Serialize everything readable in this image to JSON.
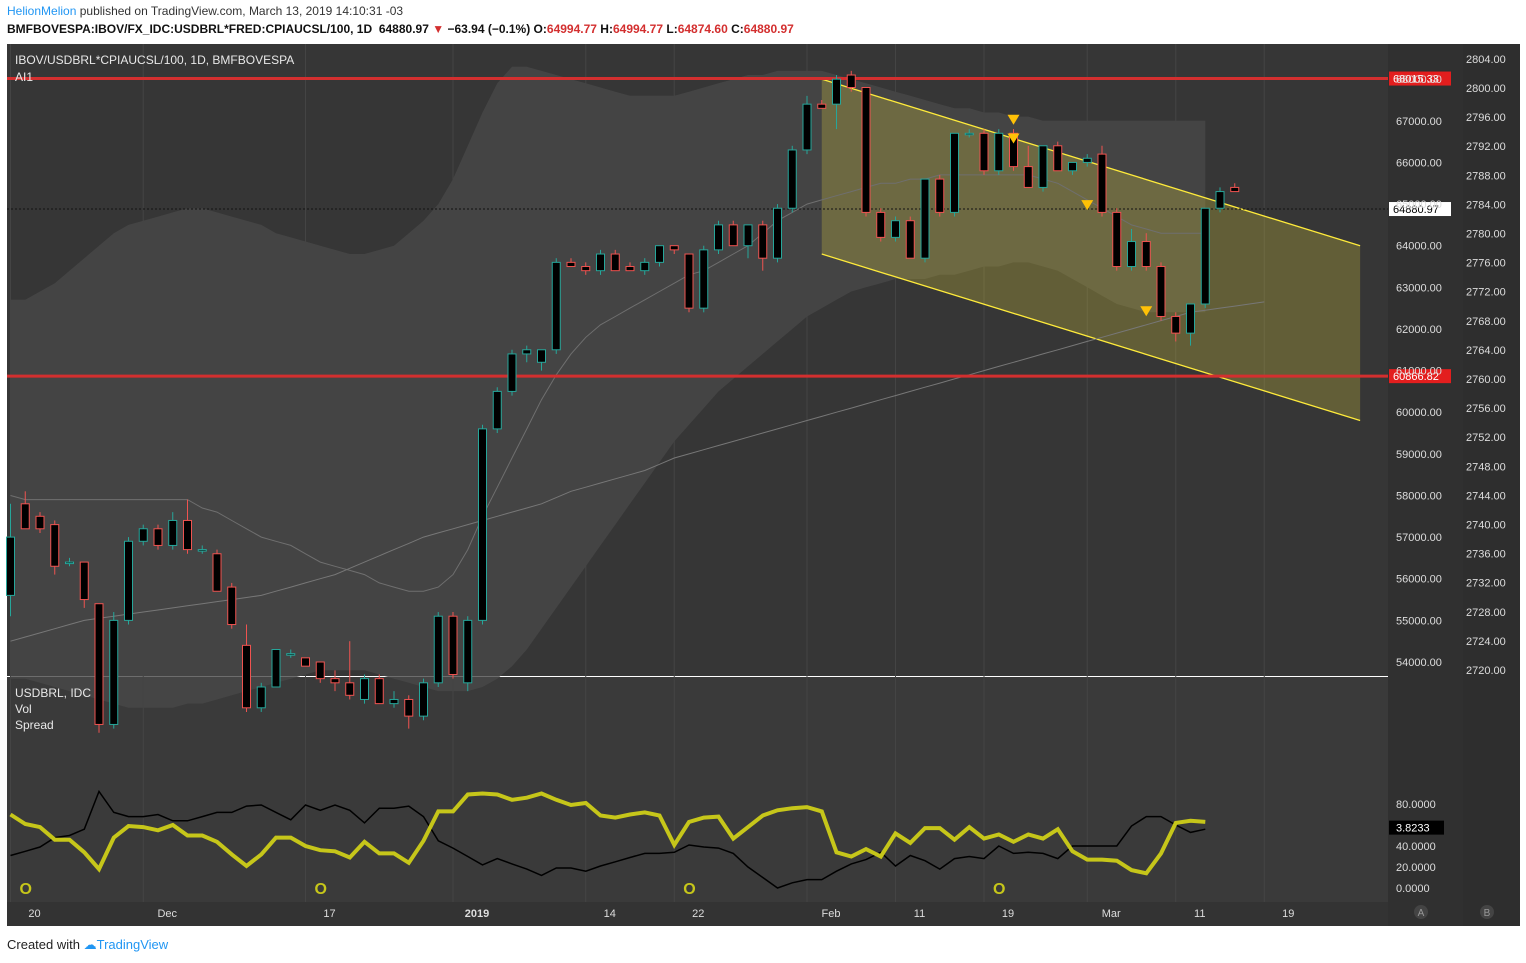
{
  "header": {
    "user": "HelionMelion",
    "published": "published on TradingView.com, March 13, 2019 14:10:31 -03"
  },
  "ohlc_line": {
    "symbol": "BMFBOVESPA:IBOV/FX_IDC:USDBRL*FRED:CPIAUCSL/100, 1D",
    "last": "64880.97",
    "change": "−63.94 (−0.1%)",
    "o_label": "O:",
    "o": "64994.77",
    "h_label": "H:",
    "h": "64994.77",
    "l_label": "L:",
    "l": "64874.60",
    "c_label": "C:",
    "c": "64880.97"
  },
  "footer": {
    "created": "Created with",
    "brand": "TradingView"
  },
  "colors": {
    "bull": "#26a69a",
    "bear": "#ef5350",
    "channel": "#ffeb3b",
    "hline": "#d32f2f",
    "spread": "#c6c61a",
    "pane_bg": "#3a3a3a"
  },
  "chart_data": [
    {
      "type": "candlestick",
      "legend": [
        "IBOV/USDBRL*CPIAUCSL/100, 1D, BMFBOVESPA",
        "AI1"
      ],
      "y_axis_right": {
        "ticks": [
          "54000.00",
          "55000.00",
          "56000.00",
          "57000.00",
          "58000.00",
          "59000.00",
          "60000.00",
          "61000.00",
          "62000.00",
          "63000.00",
          "64000.00",
          "65000.00",
          "66000.00",
          "67000.00",
          "68000.00"
        ],
        "range": [
          53800,
          68380
        ]
      },
      "y_axis_secondary": {
        "ticks": [
          "2720.00",
          "2724.00",
          "2728.00",
          "2732.00",
          "2736.00",
          "2740.00",
          "2744.00",
          "2748.00",
          "2752.00",
          "2756.00",
          "2760.00",
          "2764.00",
          "2768.00",
          "2772.00",
          "2776.00",
          "2780.00",
          "2784.00",
          "2788.00",
          "2792.00",
          "2796.00",
          "2800.00",
          "2804.00"
        ]
      },
      "x_axis": {
        "labels": [
          {
            "text": "20",
            "index": 0
          },
          {
            "text": "Dec",
            "index": 9
          },
          {
            "text": "17",
            "index": 20
          },
          {
            "text": "2019",
            "index": 30
          },
          {
            "text": "14",
            "index": 39
          },
          {
            "text": "22",
            "index": 45
          },
          {
            "text": "Feb",
            "index": 54
          },
          {
            "text": "11",
            "index": 60
          },
          {
            "text": "19",
            "index": 66
          },
          {
            "text": "Mar",
            "index": 73
          },
          {
            "text": "11",
            "index": 79
          },
          {
            "text": "19",
            "index": 85
          }
        ],
        "pane_labels": [
          "A",
          "B"
        ]
      },
      "horizontal_lines": [
        {
          "value": 68015.33,
          "label": "68015.33"
        },
        {
          "value": 60866.82,
          "label": "60866.82"
        }
      ],
      "last_price": {
        "value": 64880.97,
        "label": "64880.97"
      },
      "channel": {
        "upper_start": {
          "index": 55,
          "value": 68000
        },
        "upper_end": {
          "index": 91.5,
          "value": 64000
        },
        "lower_start": {
          "index": 55,
          "value": 63800
        },
        "lower_end": {
          "index": 91.5,
          "value": 59800
        }
      },
      "markers": [
        {
          "index": 68,
          "value": 67000,
          "direction": "down"
        },
        {
          "index": 68,
          "value": 66550,
          "direction": "down"
        },
        {
          "index": 73,
          "value": 64950,
          "direction": "down"
        },
        {
          "index": 77,
          "value": 62400,
          "direction": "up"
        }
      ],
      "ohlc": [
        [
          55600,
          57800,
          55100,
          57000
        ],
        [
          57800,
          58100,
          57200,
          57200
        ],
        [
          57500,
          57600,
          57100,
          57200
        ],
        [
          57300,
          57400,
          56100,
          56300
        ],
        [
          56400,
          56500,
          56300,
          56400
        ],
        [
          56400,
          56400,
          55300,
          55500
        ],
        [
          55400,
          55400,
          52300,
          52500
        ],
        [
          52500,
          55200,
          52400,
          55000
        ],
        [
          55000,
          57000,
          54900,
          56900
        ],
        [
          56900,
          57300,
          56800,
          57200
        ],
        [
          57200,
          57300,
          56700,
          56800
        ],
        [
          56800,
          57600,
          56700,
          57400
        ],
        [
          57400,
          57900,
          56600,
          56700
        ],
        [
          56700,
          56800,
          56600,
          56700
        ],
        [
          56600,
          56700,
          55700,
          55700
        ],
        [
          55800,
          55900,
          54800,
          54900
        ],
        [
          54400,
          54900,
          52800,
          52900
        ],
        [
          52900,
          53500,
          52800,
          53400
        ],
        [
          53400,
          54300,
          53400,
          54300
        ],
        [
          54200,
          54300,
          54100,
          54200
        ],
        [
          54100,
          54100,
          53900,
          53900
        ],
        [
          54000,
          54000,
          53500,
          53600
        ],
        [
          53600,
          53800,
          53300,
          53500
        ],
        [
          53500,
          54500,
          53100,
          53200
        ],
        [
          53100,
          53700,
          53000,
          53600
        ],
        [
          53600,
          53700,
          53000,
          53000
        ],
        [
          53000,
          53300,
          52900,
          53100
        ],
        [
          53100,
          53200,
          52400,
          52700
        ],
        [
          52700,
          53600,
          52600,
          53500
        ],
        [
          53500,
          55200,
          53400,
          55100
        ],
        [
          55100,
          55200,
          53600,
          53700
        ],
        [
          53500,
          55100,
          53300,
          55000
        ],
        [
          55000,
          59700,
          54900,
          59600
        ],
        [
          59600,
          60600,
          59500,
          60500
        ],
        [
          60500,
          61500,
          60400,
          61400
        ],
        [
          61400,
          61600,
          61200,
          61500
        ],
        [
          61200,
          61500,
          61000,
          61500
        ],
        [
          61500,
          63700,
          61400,
          63600
        ],
        [
          63600,
          63700,
          63500,
          63500
        ],
        [
          63500,
          63600,
          63300,
          63400
        ],
        [
          63400,
          63900,
          63300,
          63800
        ],
        [
          63800,
          63900,
          63400,
          63400
        ],
        [
          63500,
          63600,
          63400,
          63400
        ],
        [
          63400,
          63700,
          63300,
          63600
        ],
        [
          63600,
          64000,
          63500,
          64000
        ],
        [
          64000,
          64000,
          63800,
          63900
        ],
        [
          63800,
          63800,
          62400,
          62500
        ],
        [
          62500,
          64000,
          62400,
          63900
        ],
        [
          63900,
          64600,
          63800,
          64500
        ],
        [
          64500,
          64600,
          64000,
          64000
        ],
        [
          64000,
          64500,
          63700,
          64500
        ],
        [
          64500,
          64600,
          63400,
          63700
        ],
        [
          63700,
          65000,
          63600,
          64900
        ],
        [
          64900,
          66400,
          64800,
          66300
        ],
        [
          66300,
          67600,
          66200,
          67400
        ],
        [
          67400,
          67500,
          67300,
          67300
        ],
        [
          67400,
          68100,
          66800,
          68000
        ],
        [
          68100,
          68200,
          67700,
          67800
        ],
        [
          67800,
          67800,
          64700,
          64800
        ],
        [
          64800,
          64900,
          64100,
          64200
        ],
        [
          64200,
          64700,
          64100,
          64600
        ],
        [
          64600,
          64700,
          63700,
          63700
        ],
        [
          63700,
          65600,
          63600,
          65600
        ],
        [
          65600,
          65700,
          64700,
          64800
        ],
        [
          64800,
          66700,
          64700,
          66700
        ],
        [
          66700,
          66800,
          66600,
          66700
        ],
        [
          66700,
          66800,
          65700,
          65800
        ],
        [
          65800,
          66800,
          65700,
          66700
        ],
        [
          66700,
          66800,
          65800,
          65900
        ],
        [
          65900,
          66400,
          65400,
          65400
        ],
        [
          65400,
          66400,
          65300,
          66400
        ],
        [
          66400,
          66500,
          65800,
          65800
        ],
        [
          65800,
          66000,
          65700,
          66000
        ],
        [
          66000,
          66200,
          65900,
          66100
        ],
        [
          66200,
          66400,
          64700,
          64800
        ],
        [
          64800,
          64900,
          63400,
          63500
        ],
        [
          63500,
          64400,
          63400,
          64100
        ],
        [
          64100,
          64300,
          63400,
          63500
        ],
        [
          63500,
          63600,
          62200,
          62300
        ],
        [
          62300,
          62400,
          61700,
          61900
        ],
        [
          61900,
          62600,
          61600,
          62600
        ],
        [
          62600,
          64900,
          62500,
          64900
        ],
        [
          64900,
          65400,
          64800,
          65300
        ],
        [
          65400,
          65500,
          65300,
          65300
        ]
      ],
      "offset_start": -0.5,
      "ma_values": [
        58000,
        57900,
        57900,
        57900,
        57900,
        57900,
        57900,
        57900,
        57900,
        57900,
        57900,
        57900,
        57900,
        57700,
        57600,
        57400,
        57200,
        57000,
        56900,
        56800,
        56600,
        56400,
        56300,
        56200,
        56100,
        55900,
        55800,
        55700,
        55700,
        55800,
        56100,
        56700,
        57500,
        58200,
        58900,
        59600,
        60300,
        60900,
        61400,
        61800,
        62100,
        62300,
        62500,
        62700,
        62900,
        63100,
        63300,
        63400,
        63600,
        63800,
        64000,
        64300,
        64600,
        64800,
        65000,
        65100,
        65200,
        65300,
        65400,
        65500,
        65500,
        65600,
        65600,
        65700,
        65700,
        65700,
        65700,
        65700,
        65700,
        65700,
        65600,
        65500,
        65300,
        65100,
        64900,
        64700,
        64500,
        64400,
        64300,
        64300,
        64300,
        64300
      ],
      "ma_long_values": [
        54500,
        54600,
        54700,
        54800,
        54900,
        55000,
        55050,
        55100,
        55150,
        55200,
        55250,
        55300,
        55350,
        55400,
        55450,
        55500,
        55550,
        55600,
        55700,
        55800,
        55900,
        56000,
        56100,
        56250,
        56400,
        56550,
        56700,
        56850,
        57000,
        57100,
        57200,
        57300,
        57400,
        57500,
        57600,
        57700,
        57800,
        57950,
        58100,
        58200,
        58300,
        58400,
        58500,
        58600,
        58750,
        58900,
        59000,
        59100,
        59200,
        59300,
        59400,
        59500,
        59600,
        59700,
        59800,
        59900,
        60000,
        60100,
        60200,
        60300,
        60400,
        60500,
        60600,
        60700,
        60800,
        60900,
        61000,
        61100,
        61200,
        61300,
        61400,
        61500,
        61600,
        61700,
        61800,
        61900,
        62000,
        62100,
        62200,
        62300,
        62400,
        62450,
        62500,
        62550,
        62600,
        62650
      ]
    },
    {
      "type": "line",
      "legend": [
        "USDBRL, IDC",
        "Vol",
        "Spread"
      ],
      "y_axis_right": {
        "ticks": [
          "0.0000",
          "20.0000",
          "40.0000",
          "60.0000",
          "80.0000"
        ],
        "range": [
          -3,
          93
        ]
      },
      "last_value": {
        "value": 3.8233,
        "label": "3.8233"
      },
      "cycle_marks": [
        {
          "index": 0,
          "label": "O"
        },
        {
          "index": 20,
          "label": "O"
        },
        {
          "index": 45,
          "label": "O"
        },
        {
          "index": 66,
          "label": "O"
        }
      ],
      "series": [
        {
          "name": "Vol",
          "values": [
            31,
            35,
            39,
            48,
            50,
            56,
            92,
            72,
            68,
            68,
            70,
            64,
            64,
            68,
            72,
            72,
            78,
            79,
            72,
            65,
            79,
            74,
            79,
            74,
            62,
            76,
            76,
            78,
            68,
            45,
            38,
            30,
            22,
            28,
            23,
            18,
            12,
            19,
            19,
            16,
            21,
            25,
            29,
            33,
            33,
            34,
            41,
            39,
            38,
            33,
            20,
            10,
            0,
            5,
            8,
            8,
            16,
            23,
            27,
            34,
            21,
            31,
            26,
            18,
            28,
            30,
            28,
            40,
            33,
            34,
            33,
            28,
            40,
            40,
            40,
            40,
            59,
            68,
            68,
            60,
            53,
            56
          ]
        },
        {
          "name": "Spread",
          "values": [
            70,
            61,
            58,
            46,
            46,
            34,
            18,
            48,
            59,
            58,
            55,
            60,
            50,
            50,
            44,
            32,
            21,
            32,
            48,
            48,
            40,
            36,
            35,
            29,
            44,
            33,
            33,
            24,
            45,
            73,
            73,
            89,
            90,
            89,
            84,
            86,
            90,
            84,
            79,
            81,
            69,
            67,
            70,
            72,
            69,
            41,
            63,
            67,
            68,
            47,
            58,
            69,
            74,
            76,
            77,
            73,
            34,
            30,
            37,
            30,
            52,
            43,
            57,
            57,
            46,
            58,
            47,
            51,
            44,
            51,
            47,
            56,
            35,
            27,
            27,
            26,
            17,
            14,
            33,
            62,
            64,
            63
          ]
        }
      ]
    }
  ]
}
